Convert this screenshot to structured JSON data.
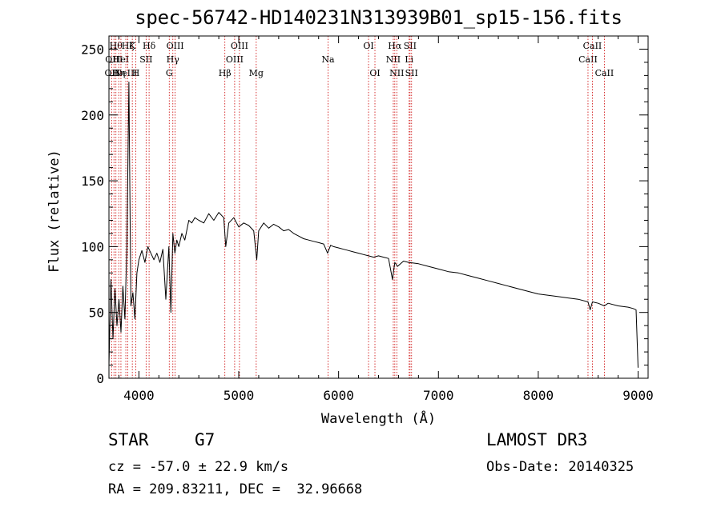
{
  "chart_data": {
    "type": "line",
    "title": "spec-56742-HD140231N313939B01_sp15-156.fits",
    "xlabel": "Wavelength (Å)",
    "ylabel": "Flux (relative)",
    "xlim": [
      3700,
      9100
    ],
    "ylim": [
      0,
      260
    ],
    "xticks": [
      4000,
      5000,
      6000,
      7000,
      8000,
      9000
    ],
    "yticks": [
      0,
      50,
      100,
      150,
      200,
      250
    ],
    "line_color": "#000000",
    "marker_color": "#cc0000",
    "series": [
      {
        "name": "flux",
        "x": [
          3700,
          3720,
          3740,
          3760,
          3780,
          3800,
          3820,
          3840,
          3860,
          3880,
          3900,
          3920,
          3940,
          3960,
          3980,
          4000,
          4030,
          4060,
          4090,
          4120,
          4150,
          4180,
          4210,
          4240,
          4270,
          4300,
          4320,
          4340,
          4360,
          4380,
          4400,
          4430,
          4460,
          4500,
          4530,
          4560,
          4600,
          4650,
          4700,
          4750,
          4800,
          4850,
          4870,
          4900,
          4950,
          5000,
          5050,
          5100,
          5150,
          5180,
          5200,
          5250,
          5300,
          5350,
          5400,
          5450,
          5500,
          5550,
          5600,
          5650,
          5700,
          5750,
          5800,
          5850,
          5890,
          5920,
          5950,
          6000,
          6050,
          6100,
          6150,
          6200,
          6250,
          6300,
          6350,
          6400,
          6450,
          6500,
          6540,
          6563,
          6590,
          6650,
          6700,
          6800,
          6900,
          7000,
          7100,
          7200,
          7300,
          7400,
          7500,
          7600,
          7700,
          7800,
          7900,
          8000,
          8100,
          8200,
          8300,
          8400,
          8498,
          8520,
          8542,
          8600,
          8662,
          8700,
          8800,
          8900,
          8950,
          8980,
          9000
        ],
        "y": [
          10,
          75,
          30,
          68,
          40,
          60,
          35,
          70,
          45,
          100,
          225,
          55,
          65,
          45,
          80,
          90,
          97,
          88,
          100,
          95,
          90,
          95,
          88,
          98,
          60,
          100,
          50,
          110,
          95,
          105,
          100,
          110,
          105,
          120,
          118,
          122,
          120,
          118,
          125,
          120,
          126,
          122,
          100,
          118,
          122,
          115,
          118,
          116,
          112,
          90,
          112,
          118,
          114,
          117,
          115,
          112,
          113,
          110,
          108,
          106,
          105,
          104,
          103,
          102,
          95,
          101,
          100,
          99,
          98,
          97,
          96,
          95,
          94,
          93,
          92,
          93,
          92,
          91,
          75,
          88,
          85,
          89,
          88,
          87,
          85,
          83,
          81,
          80,
          78,
          76,
          74,
          72,
          70,
          68,
          66,
          64,
          63,
          62,
          61,
          60,
          58,
          52,
          58,
          57,
          55,
          57,
          55,
          54,
          53,
          52,
          8
        ]
      }
    ],
    "marker_lines": [
      {
        "w": 3727,
        "label": "OII",
        "row": 3
      },
      {
        "w": 3750,
        "label": "OIII",
        "row": 2
      },
      {
        "w": 3770,
        "label": "Hθ",
        "row": 1
      },
      {
        "w": 3798,
        "label": "Hη",
        "row": 3
      },
      {
        "w": 3820,
        "label": "HeI",
        "row": 2
      },
      {
        "w": 3869,
        "label": "NeIII",
        "row": 3
      },
      {
        "w": 3889,
        "label": "Hζ",
        "row": 1
      },
      {
        "w": 3934,
        "label": "K",
        "row": 1
      },
      {
        "w": 3969,
        "label": "H",
        "row": 3
      },
      {
        "w": 4072,
        "label": "SII",
        "row": 2
      },
      {
        "w": 4102,
        "label": "Hδ",
        "row": 1
      },
      {
        "w": 4304,
        "label": "G",
        "row": 3
      },
      {
        "w": 4340,
        "label": "Hγ",
        "row": 2
      },
      {
        "w": 4363,
        "label": "OIII",
        "row": 1
      },
      {
        "w": 4861,
        "label": "Hβ",
        "row": 3
      },
      {
        "w": 4959,
        "label": "OIII",
        "row": 2
      },
      {
        "w": 5007,
        "label": "OIII",
        "row": 1
      },
      {
        "w": 5175,
        "label": "Mg",
        "row": 3
      },
      {
        "w": 5894,
        "label": "Na",
        "row": 2
      },
      {
        "w": 6300,
        "label": "OI",
        "row": 1
      },
      {
        "w": 6364,
        "label": "OI",
        "row": 3
      },
      {
        "w": 6548,
        "label": "NII",
        "row": 2
      },
      {
        "w": 6563,
        "label": "Hα",
        "row": 1
      },
      {
        "w": 6583,
        "label": "NII",
        "row": 3
      },
      {
        "w": 6707,
        "label": "Li",
        "row": 2
      },
      {
        "w": 6716,
        "label": "SII",
        "row": 1
      },
      {
        "w": 6731,
        "label": "SII",
        "row": 3
      },
      {
        "w": 8498,
        "label": "CaII",
        "row": 2
      },
      {
        "w": 8542,
        "label": "CaII",
        "row": 1
      },
      {
        "w": 8662,
        "label": "CaII",
        "row": 3
      }
    ]
  },
  "info": {
    "class_label": "STAR",
    "subclass": "G7",
    "survey": "LAMOST DR3",
    "redshift_text": "cz = -57.0 ± 22.9 km/s",
    "obs_date_text": "Obs-Date: 20140325",
    "coords_text": "RA = 209.83211, DEC =  32.96668"
  }
}
